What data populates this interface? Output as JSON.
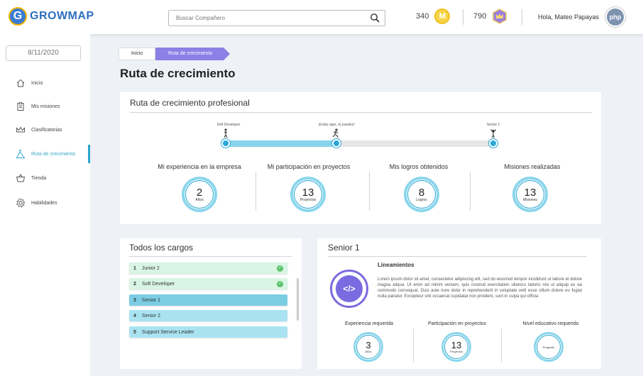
{
  "app": {
    "logo_letter": "G",
    "name": "GROWMAP"
  },
  "search": {
    "placeholder": "Buscar Compañero"
  },
  "header": {
    "coins": "340",
    "coin_symbol": "M",
    "gems": "790",
    "greeting": "Hola, Mateo Papayas",
    "avatar_text": "php"
  },
  "sidebar": {
    "date": "8/11/2020",
    "items": [
      {
        "label": "Inicio",
        "icon": "home-icon"
      },
      {
        "label": "Mis misiones",
        "icon": "clipboard-icon"
      },
      {
        "label": "Clasificatorias",
        "icon": "crown-icon"
      },
      {
        "label": "Ruta de crecimiento",
        "icon": "growth-icon",
        "active": true
      },
      {
        "label": "Tienda",
        "icon": "basket-icon"
      },
      {
        "label": "Habilidades",
        "icon": "gear-icon"
      }
    ]
  },
  "breadcrumb": {
    "items": [
      "Inicio",
      "Ruta de crecimiento"
    ]
  },
  "page_title": "Ruta de crecimiento",
  "profile_card": {
    "title": "Ruta de crecimiento profesional",
    "track": {
      "start_label": "Soft Developer",
      "current_label": "¡Estás aquí, tú puedes!",
      "end_label": "Senior 1",
      "progress": 0.41
    },
    "stats": [
      {
        "label": "Mi experiencia en la empresa",
        "value": "2",
        "unit": "Años"
      },
      {
        "label": "Mi participación en proyectos",
        "value": "13",
        "unit": "Proyectos"
      },
      {
        "label": "Mis logros obtenidos",
        "value": "8",
        "unit": "Logros"
      },
      {
        "label": "Misiones realizadas",
        "value": "13",
        "unit": "Misiones"
      }
    ]
  },
  "cargos_card": {
    "title": "Todos los cargos",
    "items": [
      {
        "num": "1",
        "label": "Junior 2",
        "done": true,
        "color": "#d9f5e4"
      },
      {
        "num": "2",
        "label": "Soft Developer",
        "done": true,
        "color": "#d9f5e4"
      },
      {
        "num": "3",
        "label": "Senior 1",
        "done": false,
        "color": "#7bcde3"
      },
      {
        "num": "4",
        "label": "Senior 2",
        "done": false,
        "color": "#a9e3f2"
      },
      {
        "num": "5",
        "label": "Support Service Leader",
        "done": false,
        "color": "#a9e3f2"
      }
    ]
  },
  "senior_card": {
    "title": "Senior 1",
    "icon_glyph": "</>",
    "lineamientos_title": "Lineamientos",
    "lineamientos_text": "Lorem ipsum dolor sit amet, consectetur adipiscing elit, sed do eiusmod tempor incididunt ut labore et dolore magna aliqua. Ut enim ad minim veniam, quis nostrud exercitation ullamco laboris nisi ut aliquip ex ea commodo consequat. Duis aute irure dolor in reprehenderit in voluptate velit esse cillum dolore eu fugiat nulla pariatur. Excepteur sint occaecat cupidatat non proident, sunt in culpa qui officia",
    "requirements": [
      {
        "label": "Experiencia requerida",
        "value": "3",
        "unit": "Años"
      },
      {
        "label": "Participación en proyectos",
        "value": "13",
        "unit": "Proyectos"
      },
      {
        "label": "Nivel educativo requerido",
        "value": "",
        "unit": "Pregrado"
      }
    ]
  },
  "colors": {
    "accent": "#2aa6cc",
    "purple": "#8c80e6",
    "ring": "#8ad6ec"
  }
}
